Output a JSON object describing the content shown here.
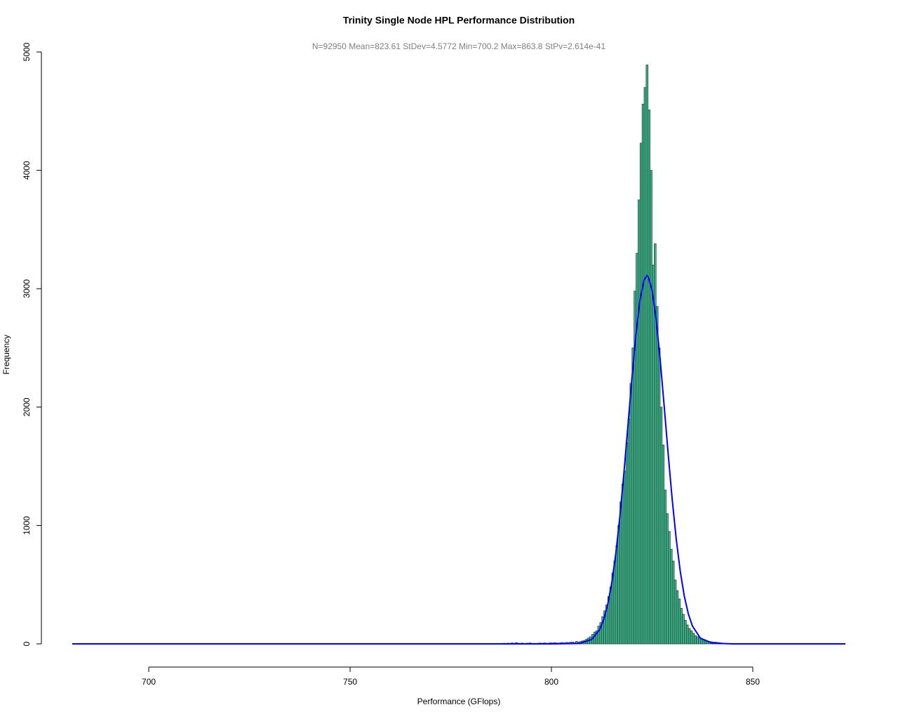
{
  "chart_data": {
    "type": "histogram",
    "title": "Trinity Single Node HPL Performance Distribution",
    "subtitle": "N=92950 Mean=823.61 StDev=4.5772 Min=700.2 Max=863.8 StPv=2.614e-41",
    "x_label": "Performance (GFlops)",
    "y_label": "Frequency",
    "bins": [
      786,
      786.5,
      787,
      787.5,
      788,
      788.5,
      789,
      789.5,
      790,
      790.5,
      791,
      791.5,
      792,
      792.5,
      793,
      793.5,
      794,
      794.5,
      795,
      795.5,
      796,
      796.5,
      797,
      797.5,
      798,
      798.5,
      799,
      799.5,
      800,
      800.5,
      801,
      801.5,
      802,
      802.5,
      803,
      803.5,
      804,
      804.5,
      805,
      805.5,
      806,
      806.5,
      807,
      807.5,
      808,
      808.5,
      809,
      809.5,
      810,
      810.5,
      811,
      811.5,
      812,
      812.5,
      813,
      813.5,
      814,
      814.5,
      815,
      815.5,
      816,
      816.5,
      817,
      817.5,
      818,
      818.5,
      819,
      819.5,
      820,
      820.5,
      821,
      821.5,
      822,
      822.5,
      823,
      823.5,
      824,
      824.5,
      825,
      825.5,
      826,
      826.5,
      827,
      827.5,
      828,
      828.5,
      829,
      829.5,
      830,
      830.5,
      831,
      831.5,
      832,
      832.5,
      833,
      833.5,
      834,
      834.5,
      835,
      835.5,
      836,
      836.5,
      837,
      837.5,
      838,
      838.5,
      839,
      839.5,
      840,
      840.5,
      841,
      841.5,
      842,
      842.5,
      843,
      843.5,
      844,
      844.5,
      845,
      845.5,
      846
    ],
    "counts": [
      3,
      2,
      4,
      3,
      5,
      4,
      6,
      3,
      8,
      5,
      10,
      6,
      4,
      7,
      3,
      5,
      6,
      8,
      4,
      5,
      3,
      6,
      7,
      5,
      8,
      6,
      5,
      9,
      7,
      10,
      8,
      6,
      9,
      11,
      8,
      12,
      10,
      14,
      15,
      10,
      20,
      15,
      20,
      25,
      30,
      40,
      50,
      60,
      80,
      100,
      110,
      150,
      180,
      230,
      280,
      330,
      400,
      480,
      600,
      700,
      830,
      1000,
      1200,
      1350,
      1460,
      1700,
      1900,
      2200,
      2500,
      2980,
      3300,
      3750,
      4230,
      4560,
      4700,
      4890,
      4510,
      4000,
      3200,
      3380,
      2850,
      2500,
      2000,
      1680,
      1300,
      1100,
      950,
      800,
      700,
      540,
      450,
      380,
      300,
      250,
      200,
      160,
      130,
      110,
      90,
      70,
      60,
      50,
      45,
      35,
      30,
      25,
      20,
      18,
      15,
      15,
      12,
      10,
      8,
      5,
      3,
      2,
      1,
      1,
      0,
      0
    ],
    "color": "#3cb38a",
    "edge_color": "#1f3b2e",
    "curve": {
      "color": "#0000ff",
      "x": [
        681,
        800,
        807,
        810,
        812,
        813,
        814,
        815,
        816,
        817,
        818,
        819,
        820,
        821,
        822,
        823,
        823.7,
        824,
        825,
        826,
        827,
        828,
        829,
        830,
        831,
        832,
        833,
        834,
        835,
        837,
        840,
        845,
        873
      ],
      "values": [
        0,
        0,
        4,
        37,
        122,
        208,
        337,
        520,
        766,
        1077,
        1443,
        1845,
        2250,
        2618,
        2905,
        3074,
        3110,
        3103,
        2988,
        2745,
        2404,
        2009,
        1601,
        1217,
        883,
        611,
        403,
        253,
        152,
        48,
        6,
        0,
        0
      ]
    },
    "xlim": [
      681,
      873
    ],
    "xticks": [
      700,
      750,
      800,
      850
    ],
    "ylim": [
      0,
      5000
    ],
    "yticks": [
      0,
      1000,
      2000,
      3000,
      4000,
      5000
    ]
  }
}
